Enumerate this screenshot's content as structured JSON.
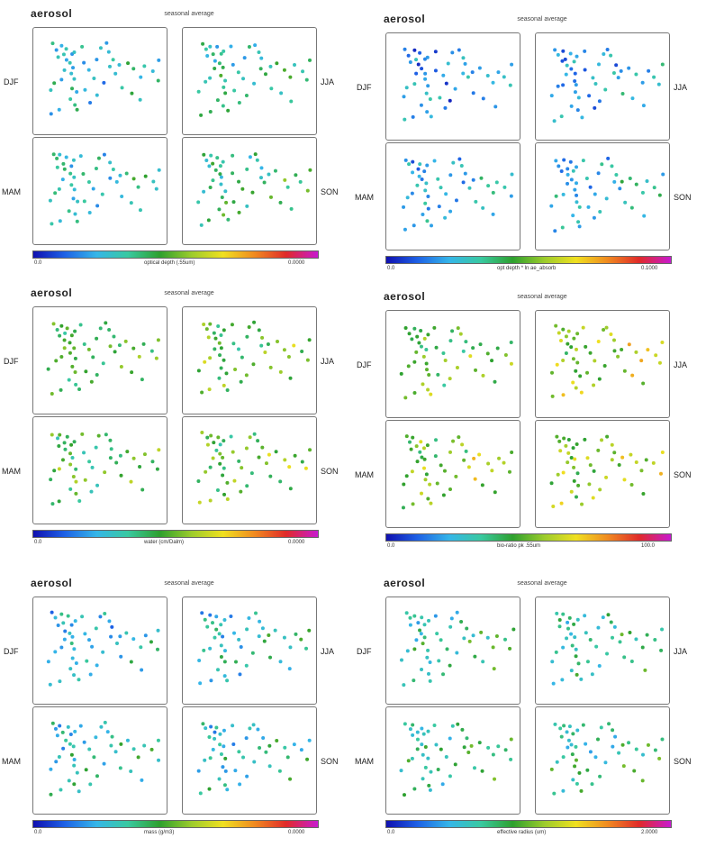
{
  "figures": [
    {
      "title": "aerosol",
      "subtitle": "seasonal average",
      "cbar_label": "optical depth (.55um)",
      "cbar_min": "0.0",
      "cbar_max": "0.0000",
      "seasons": [
        "DJF",
        "JJA",
        "MAM",
        "SON"
      ],
      "palette": [
        0.28,
        0.35,
        0.32,
        0.38
      ]
    },
    {
      "title": "aerosol",
      "subtitle": "seasonal average",
      "cbar_label": "opt depth * ln ae_absorb",
      "cbar_min": "0.0",
      "cbar_max": "0.1000",
      "seasons": [
        "DJF",
        "JJA",
        "MAM",
        "SON"
      ],
      "palette": [
        0.18,
        0.22,
        0.22,
        0.26
      ]
    },
    {
      "title": "aerosol",
      "subtitle": "seasonal average",
      "cbar_label": "water (cm/Dalm)",
      "cbar_min": "0.0",
      "cbar_max": "0.0000",
      "seasons": [
        "DJF",
        "JJA",
        "MAM",
        "SON"
      ],
      "palette": [
        0.45,
        0.5,
        0.48,
        0.5
      ]
    },
    {
      "title": "aerosol",
      "subtitle": "seasonal average",
      "cbar_label": "bio-ratio pk .55um",
      "cbar_min": "0.0",
      "cbar_max": "100.0",
      "seasons": [
        "DJF",
        "JJA",
        "MAM",
        "SON"
      ],
      "palette": [
        0.5,
        0.58,
        0.55,
        0.56
      ]
    },
    {
      "title": "aerosol",
      "subtitle": "seasonal average",
      "cbar_label": "mass (g/m3)",
      "cbar_min": "0.0",
      "cbar_max": "0.0000",
      "seasons": [
        "DJF",
        "JJA",
        "MAM",
        "SON"
      ],
      "palette": [
        0.26,
        0.3,
        0.3,
        0.3
      ]
    },
    {
      "title": "aerosol",
      "subtitle": "seasonal average",
      "cbar_label": "effective radius (um)",
      "cbar_min": "0.0",
      "cbar_max": "2.0000",
      "seasons": [
        "DJF",
        "JJA",
        "MAM",
        "SON"
      ],
      "palette": [
        0.35,
        0.35,
        0.38,
        0.36
      ]
    }
  ],
  "colors": {
    "frame": "#777777",
    "text": "#222222"
  }
}
